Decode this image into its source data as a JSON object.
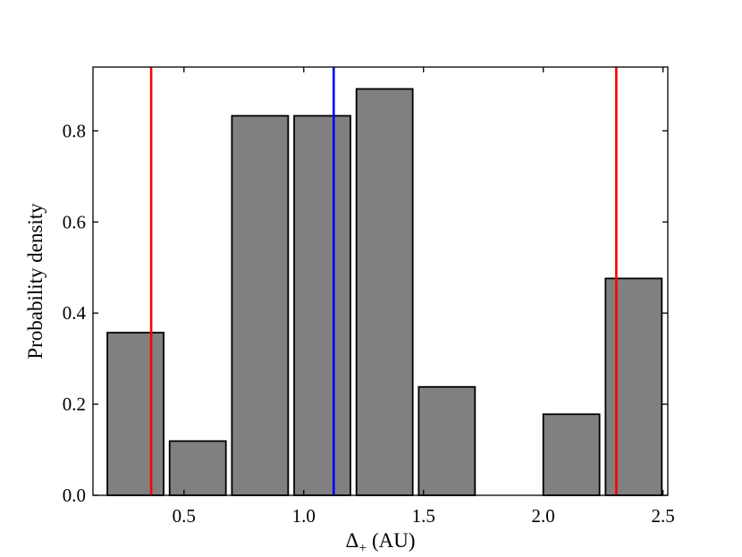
{
  "chart_data": {
    "type": "bar",
    "xlabel_symbol": "Δ",
    "xlabel_subscript": "+",
    "xlabel_unit": " (AU)",
    "ylabel": "Probability density",
    "xlim": [
      0.12,
      2.52
    ],
    "ylim": [
      0.0,
      0.94
    ],
    "bins": [
      {
        "left": 0.18,
        "right": 0.415,
        "value": 0.357
      },
      {
        "left": 0.44,
        "right": 0.675,
        "value": 0.119
      },
      {
        "left": 0.7,
        "right": 0.935,
        "value": 0.833
      },
      {
        "left": 0.96,
        "right": 1.195,
        "value": 0.833
      },
      {
        "left": 1.22,
        "right": 1.455,
        "value": 0.892
      },
      {
        "left": 1.48,
        "right": 1.715,
        "value": 0.238
      },
      {
        "left": 1.74,
        "right": 1.975,
        "value": 0.0
      },
      {
        "left": 2.0,
        "right": 2.235,
        "value": 0.178
      },
      {
        "left": 2.26,
        "right": 2.495,
        "value": 0.476
      }
    ],
    "vertical_lines": [
      {
        "x": 0.363,
        "color": "#ff0000"
      },
      {
        "x": 1.125,
        "color": "#0000ff"
      },
      {
        "x": 2.305,
        "color": "#ff0000"
      }
    ],
    "xticks": [
      {
        "value": 0.5,
        "label": "0.5"
      },
      {
        "value": 1.0,
        "label": "1.0"
      },
      {
        "value": 1.5,
        "label": "1.5"
      },
      {
        "value": 2.0,
        "label": "2.0"
      },
      {
        "value": 2.5,
        "label": "2.5"
      }
    ],
    "yticks": [
      {
        "value": 0.0,
        "label": "0.0"
      },
      {
        "value": 0.2,
        "label": "0.2"
      },
      {
        "value": 0.4,
        "label": "0.4"
      },
      {
        "value": 0.6,
        "label": "0.6"
      },
      {
        "value": 0.8,
        "label": "0.8"
      }
    ],
    "bar_color": "#808080",
    "bar_edge_color": "#000000",
    "grid": false,
    "ticks_direction": "in",
    "ticks_on_all_sides": true
  }
}
